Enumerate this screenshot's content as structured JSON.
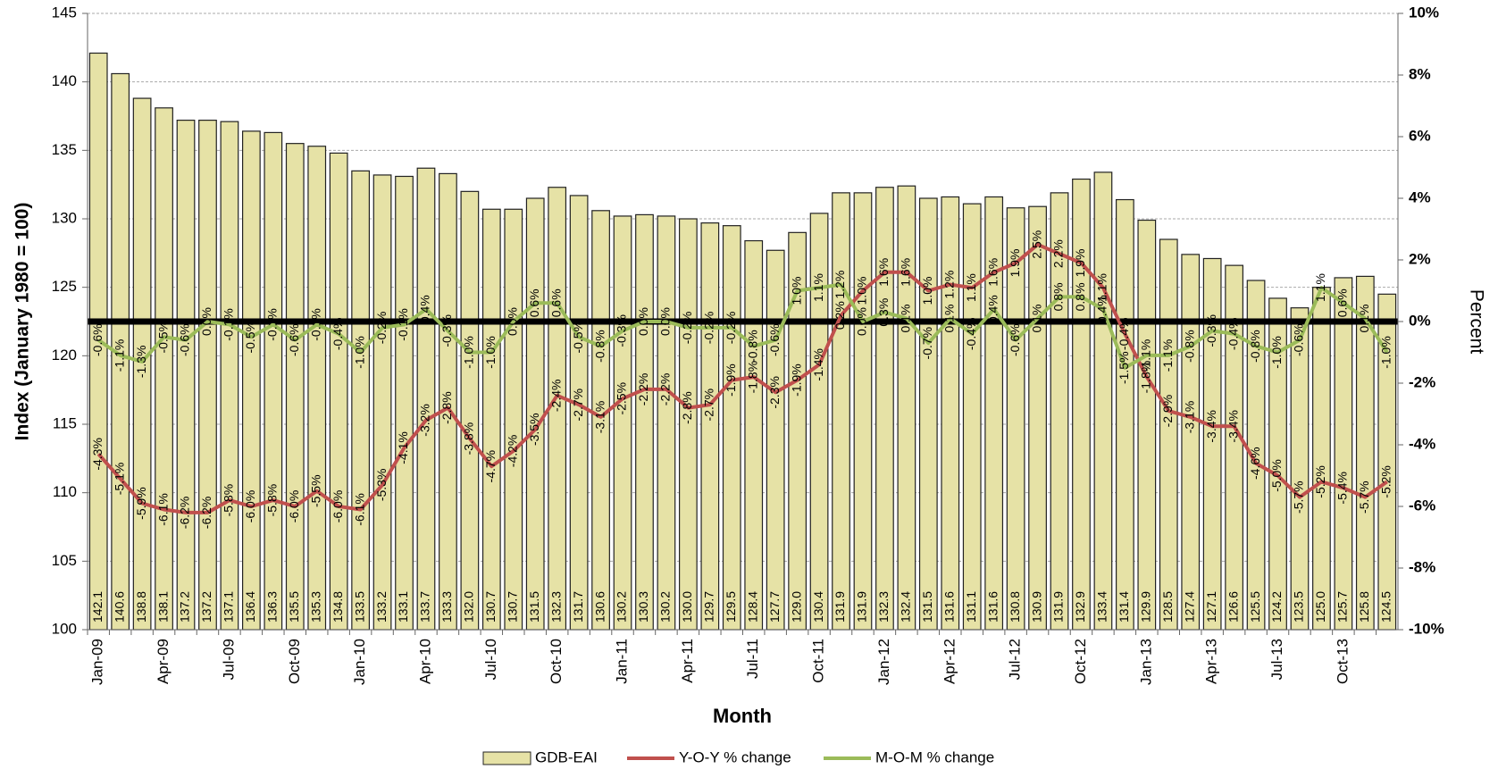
{
  "chart_data": {
    "type": "bar",
    "y_label": "Index  (January 1980 = 100)",
    "x_label": "Month",
    "y2_label": "Percent",
    "categories": [
      "Jan-09",
      null,
      null,
      "Apr-09",
      null,
      null,
      "Jul-09",
      null,
      null,
      "Oct-09",
      null,
      null,
      "Jan-10",
      null,
      null,
      "Apr-10",
      null,
      null,
      "Jul-10",
      null,
      null,
      "Oct-10",
      null,
      null,
      "Jan-11",
      null,
      null,
      "Apr-11",
      null,
      null,
      "Jul-11",
      null,
      null,
      "Oct-11",
      null,
      null,
      "Jan-12",
      null,
      null,
      "Apr-12",
      null,
      null,
      "Jul-12",
      null,
      null,
      "Oct-12",
      null,
      null,
      "Jan-13",
      null,
      null,
      "Apr-13",
      null,
      null,
      "Jul-13",
      null,
      null,
      "Oct-13",
      null,
      null
    ],
    "series": [
      {
        "name": "GDB-EAI",
        "type": "bar",
        "color": "#e6e2a6",
        "values": [
          142.1,
          140.6,
          138.8,
          138.1,
          137.2,
          137.2,
          137.1,
          136.4,
          136.3,
          135.5,
          135.3,
          134.8,
          133.5,
          133.2,
          133.1,
          133.7,
          133.3,
          132.0,
          130.7,
          130.7,
          131.5,
          132.3,
          131.7,
          130.6,
          130.2,
          130.3,
          130.2,
          130.0,
          129.7,
          129.5,
          128.4,
          127.7,
          129.0,
          130.4,
          131.9,
          131.9,
          132.3,
          132.4,
          131.5,
          131.6,
          131.1,
          131.6,
          130.8,
          130.9,
          131.9,
          132.9,
          133.4,
          131.4,
          129.9,
          128.5,
          127.4,
          127.1,
          126.6,
          125.5,
          124.2,
          123.5,
          125.0,
          125.7,
          125.8,
          124.5
        ],
        "value_labels": [
          "142.1",
          "140.6",
          "138.8",
          "138.1",
          "137.2",
          "137.2",
          "137.1",
          "136.4",
          "136.3",
          "135.5",
          "135.3",
          "134.8",
          "133.5",
          "133.2",
          "133.1",
          "133.7",
          "133.3",
          "132.0",
          "130.7",
          "130.7",
          "131.5",
          "132.3",
          "131.7",
          "130.6",
          "130.2",
          "130.3",
          "130.2",
          "130.0",
          "129.7",
          "129.5",
          "128.4",
          "127.7",
          "129.0",
          "130.4",
          "131.9",
          "131.9",
          "132.3",
          "132.4",
          "131.5",
          "131.6",
          "131.1",
          "131.6",
          "130.8",
          "130.9",
          "131.9",
          "132.9",
          "133.4",
          "131.4",
          "129.9",
          "128.5",
          "127.4",
          "127.1",
          "126.6",
          "125.5",
          "124.2",
          "123.5",
          "125.0",
          "125.7",
          "125.8",
          "124.5"
        ]
      },
      {
        "name": "Y-O-Y % change",
        "type": "line",
        "axis": "y2",
        "color": "#c0504d",
        "values": [
          -4.3,
          -5.1,
          -5.9,
          -6.1,
          -6.2,
          -6.2,
          -5.8,
          -6.0,
          -5.8,
          -6.0,
          -5.5,
          -6.0,
          -6.1,
          -5.3,
          -4.1,
          -3.2,
          -2.8,
          -3.8,
          -4.7,
          -4.2,
          -3.5,
          -2.4,
          -2.7,
          -3.1,
          -2.5,
          -2.2,
          -2.2,
          -2.8,
          -2.7,
          -1.9,
          -1.8,
          -2.3,
          -1.9,
          -1.4,
          0.2,
          1.0,
          1.6,
          1.6,
          1.0,
          1.2,
          1.1,
          1.6,
          1.9,
          2.5,
          2.2,
          1.9,
          1.1,
          -0.4,
          -1.8,
          -2.9,
          -3.1,
          -3.4,
          -3.4,
          -4.6,
          -5.0,
          -5.7,
          -5.2,
          -5.4,
          -5.7,
          -5.2
        ],
        "value_labels": [
          "-4.3%",
          "-5.1%",
          "-5.9%",
          "-6.1%",
          "-6.2%",
          "-6.2%",
          "-5.8%",
          "-6.0%",
          "-5.8%",
          "-6.0%",
          "-5.5%",
          "-6.0%",
          "-6.1%",
          "-5.3%",
          "-4.1%",
          "-3.2%",
          "-2.8%",
          "-3.8%",
          "-4.7%",
          "-4.2%",
          "-3.5%",
          "-2.4%",
          "-2.7%",
          "-3.1%",
          "-2.5%",
          "-2.2%",
          "-2.2%",
          "-2.8%",
          "-2.7%",
          "-1.9%",
          "-1.8%",
          "-2.3%",
          "-1.9%",
          "-1.4%",
          "0.2%",
          "1.0%",
          "1.6%",
          "1.6%",
          "1.0%",
          "1.2%",
          "1.1%",
          "1.6%",
          "1.9%",
          "2.5%",
          "2.2%",
          "1.9%",
          "1.1%",
          "-0.4%",
          "-1.8%",
          "-2.9%",
          "-3.1%",
          "-3.4%",
          "-3.4%",
          "-4.6%",
          "-5.0%",
          "-5.7%",
          "-5.2%",
          "-5.4%",
          "-5.7%",
          "-5.2%"
        ]
      },
      {
        "name": "M-O-M % change",
        "type": "line",
        "axis": "y2",
        "color": "#9bbb59",
        "values": [
          -0.6,
          -1.1,
          -1.3,
          -0.5,
          -0.6,
          0.0,
          -0.1,
          -0.5,
          -0.1,
          -0.6,
          -0.1,
          -0.4,
          -1.0,
          -0.2,
          -0.1,
          0.4,
          -0.3,
          -1.0,
          -1.0,
          0.0,
          0.6,
          0.6,
          -0.5,
          -0.8,
          -0.3,
          0.0,
          0.0,
          -0.2,
          -0.2,
          -0.2,
          -0.8,
          -0.6,
          1.0,
          1.1,
          1.2,
          0.0,
          0.3,
          0.1,
          -0.7,
          0.1,
          -0.4,
          0.4,
          -0.6,
          0.1,
          0.8,
          0.8,
          0.4,
          -1.5,
          -1.1,
          -1.1,
          -0.8,
          -0.3,
          -0.4,
          -0.8,
          -1.0,
          -0.6,
          1.1,
          0.6,
          0.1,
          -1.0
        ],
        "value_labels": [
          "-0.6%",
          "-1.1%",
          "-1.3%",
          "-0.5%",
          "-0.6%",
          "0.0%",
          "-0.1%",
          "-0.5%",
          "-0.1%",
          "-0.6%",
          "-0.1%",
          "-0.4%",
          "-1.0%",
          "-0.2%",
          "-0.1%",
          "0.4%",
          "-0.3%",
          "-1.0%",
          "-1.0%",
          "0.0%",
          "0.6%",
          "0.6%",
          "-0.5%",
          "-0.8%",
          "-0.3%",
          "0.0%",
          "0.0%",
          "-0.2%",
          "-0.2%",
          "-0.2%",
          "-0.8%",
          "-0.6%",
          "1.0%",
          "1.1%",
          "1.2%",
          "0.0%",
          "0.3%",
          "0.1%",
          "-0.7%",
          "0.1%",
          "-0.4%",
          "0.4%",
          "-0.6%",
          "0.1%",
          "0.8%",
          "0.8%",
          "0.4%",
          "-1.5%",
          "-1.1%",
          "-1.1%",
          "-0.8%",
          "-0.3%",
          "-0.4%",
          "-0.8%",
          "-1.0%",
          "-0.6%",
          "1.1%",
          "0.6%",
          "0.1%",
          "-1.0%"
        ]
      }
    ],
    "ylim": [
      100,
      145
    ],
    "yticks": [
      100,
      105,
      110,
      115,
      120,
      125,
      130,
      135,
      140,
      145
    ],
    "y2lim": [
      -10,
      10
    ],
    "y2ticks": [
      {
        "value": -10,
        "label": "-10%"
      },
      {
        "value": -8,
        "label": "-8%"
      },
      {
        "value": -6,
        "label": "-6%"
      },
      {
        "value": -4,
        "label": "-4%"
      },
      {
        "value": -2,
        "label": "-2%"
      },
      {
        "value": 0,
        "label": "0%"
      },
      {
        "value": 2,
        "label": "2%"
      },
      {
        "value": 4,
        "label": "4%"
      },
      {
        "value": 6,
        "label": "6%"
      },
      {
        "value": 8,
        "label": "8%"
      },
      {
        "value": 10,
        "label": "10%"
      }
    ],
    "grid": true,
    "legend": "bottom"
  }
}
